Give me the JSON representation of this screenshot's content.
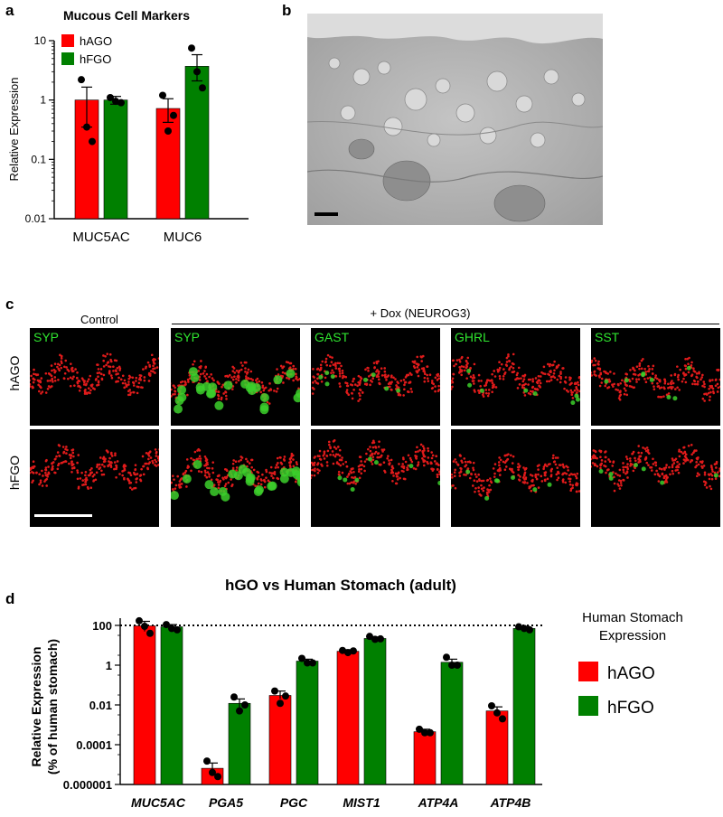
{
  "panels": {
    "a": "a",
    "b": "b",
    "c": "c",
    "d": "d"
  },
  "panel_c": {
    "control_header": "Control",
    "dox_header": "+ Dox (NEUROG3)",
    "rows": [
      "hAGO",
      "hFGO"
    ],
    "labels": [
      "SYP",
      "SYP",
      "GAST",
      "GHRL",
      "SST"
    ],
    "colors": {
      "nuclei": "#e01b1b",
      "marker": "#3ccf2c"
    }
  },
  "chart_data": [
    {
      "type": "bar",
      "title": "Mucous Cell Markers",
      "ylabel": "Relative Expression",
      "yscale": "log",
      "ylim": [
        0.01,
        10
      ],
      "yticks": [
        "10",
        "1",
        "0.1",
        "0.01"
      ],
      "categories": [
        "MUC5AC",
        "MUC6"
      ],
      "legend_position": "top-left",
      "series": [
        {
          "name": "hAGO",
          "color": "#ff0000",
          "values": [
            1.0,
            0.72
          ],
          "error": [
            [
              0.35,
              1.65
            ],
            [
              0.42,
              1.05
            ]
          ],
          "points": [
            [
              2.2,
              0.35,
              0.2
            ],
            [
              1.2,
              0.3,
              0.55
            ]
          ]
        },
        {
          "name": "hFGO",
          "color": "#008000",
          "values": [
            1.0,
            3.7
          ],
          "error": [
            [
              0.85,
              1.15
            ],
            [
              2.1,
              5.8
            ]
          ],
          "points": [
            [
              1.1,
              0.95,
              0.9
            ],
            [
              7.5,
              3.0,
              1.6
            ]
          ]
        }
      ]
    },
    {
      "type": "bar",
      "title": "hGO vs Human Stomach (adult)",
      "ylabel": "Relative Expression",
      "ylabel2": "(% of human stomach)",
      "yscale": "log",
      "ylim": [
        1e-06,
        100
      ],
      "yticks": [
        "100",
        "1",
        "0.01",
        "0.0001",
        "0.000001"
      ],
      "reference_line": 100,
      "categories": [
        "MUC5AC",
        "PGA5",
        "PGC",
        "MIST1",
        "ATP4A",
        "ATP4B"
      ],
      "legend_title": "Human Stomach Expression",
      "legend_title_lines": [
        "Human Stomach",
        "Expression"
      ],
      "legend_position": "right",
      "series": [
        {
          "name": "hAGO",
          "color": "#ff0000",
          "values": [
            95,
            6.5e-06,
            0.03,
            5,
            0.00045,
            0.005
          ],
          "error": [
            [
              50,
              160
            ],
            [
              3.5e-06,
              1.2e-05
            ],
            [
              0.02,
              0.05
            ],
            [
              4,
              6
            ],
            [
              0.00035,
              0.0006
            ],
            [
              0.0028,
              0.008
            ]
          ],
          "points": [
            [
              170,
              90,
              40
            ],
            [
              1.5e-05,
              4e-06,
              2.5e-06
            ],
            [
              0.05,
              0.012,
              0.028
            ],
            [
              5.5,
              4.3,
              5.2
            ],
            [
              0.0006,
              0.0004,
              0.0004
            ],
            [
              0.009,
              0.004,
              0.002
            ]
          ]
        },
        {
          "name": "hFGO",
          "color": "#008000",
          "values": [
            85,
            0.012,
            1.6,
            22,
            1.4,
            70
          ],
          "error": [
            [
              60,
              110
            ],
            [
              0.006,
              0.02
            ],
            [
              1.2,
              2.0
            ],
            [
              18,
              26
            ],
            [
              0.9,
              2.0
            ],
            [
              55,
              90
            ]
          ],
          "points": [
            [
              110,
              70,
              60
            ],
            [
              0.025,
              0.005,
              0.01
            ],
            [
              2.2,
              1.3,
              1.3
            ],
            [
              28,
              20,
              21
            ],
            [
              2.5,
              1.0,
              1.0
            ],
            [
              85,
              70,
              60
            ]
          ]
        }
      ]
    }
  ]
}
